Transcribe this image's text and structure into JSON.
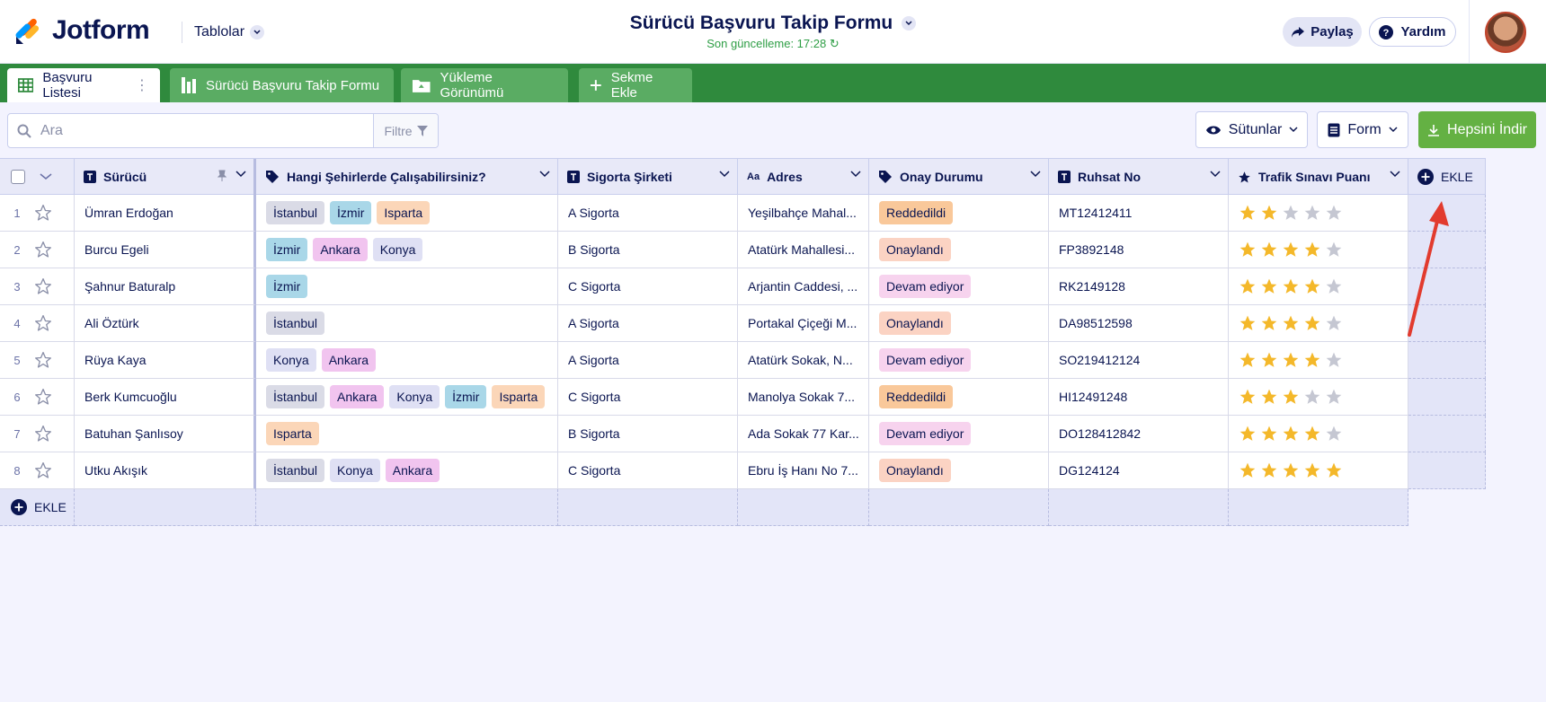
{
  "header": {
    "brand": "Jotform",
    "tables_label": "Tablolar",
    "form_title": "Sürücü Başvuru Takip Formu",
    "last_updated": "Son güncelleme: 17:28",
    "share_label": "Paylaş",
    "help_label": "Yardım"
  },
  "tabs": [
    {
      "label": "Başvuru Listesi",
      "icon": "grid-icon",
      "active": true
    },
    {
      "label": "Sürücü Başvuru Takip Formu",
      "icon": "report-icon",
      "active": false
    },
    {
      "label": "Yükleme Görünümü",
      "icon": "folder-icon",
      "active": false
    },
    {
      "label": "Sekme Ekle",
      "icon": "plus-icon",
      "active": false
    }
  ],
  "toolbar": {
    "search_placeholder": "Ara",
    "filter_label": "Filtre",
    "columns_label": "Sütunlar",
    "form_label": "Form",
    "download_label": "Hepsini İndir"
  },
  "columns": [
    {
      "label": "Sürücü",
      "icon": "text-icon"
    },
    {
      "label": "Hangi Şehirlerde Çalışabilirsiniz?",
      "icon": "tag-icon"
    },
    {
      "label": "Sigorta Şirketi",
      "icon": "text-icon"
    },
    {
      "label": "Adres",
      "icon": "font-icon"
    },
    {
      "label": "Onay Durumu",
      "icon": "tag-icon"
    },
    {
      "label": "Ruhsat No",
      "icon": "text-icon"
    },
    {
      "label": "Trafik Sınavı Puanı",
      "icon": "star-icon"
    }
  ],
  "add_column_label": "EKLE",
  "add_row_label": "EKLE",
  "rows": [
    {
      "num": "1",
      "driver": "Ümran Erdoğan",
      "cities": [
        "İstanbul",
        "İzmir",
        "Isparta"
      ],
      "insurance": "A Sigorta",
      "address": "Yeşilbahçe Mahal...",
      "status": "Reddedildi",
      "license": "MT12412411",
      "rating": 2
    },
    {
      "num": "2",
      "driver": "Burcu Egeli",
      "cities": [
        "İzmir",
        "Ankara",
        "Konya"
      ],
      "insurance": "B Sigorta",
      "address": "Atatürk Mahallesi...",
      "status": "Onaylandı",
      "license": "FP3892148",
      "rating": 4
    },
    {
      "num": "3",
      "driver": "Şahnur Baturalp",
      "cities": [
        "İzmir"
      ],
      "insurance": "C Sigorta",
      "address": "Arjantin Caddesi, ...",
      "status": "Devam ediyor",
      "license": "RK2149128",
      "rating": 4
    },
    {
      "num": "4",
      "driver": "Ali Öztürk",
      "cities": [
        "İstanbul"
      ],
      "insurance": "A Sigorta",
      "address": "Portakal Çiçeği M...",
      "status": "Onaylandı",
      "license": "DA98512598",
      "rating": 4
    },
    {
      "num": "5",
      "driver": "Rüya Kaya",
      "cities": [
        "Konya",
        "Ankara"
      ],
      "insurance": "A Sigorta",
      "address": "Atatürk Sokak, N...",
      "status": "Devam ediyor",
      "license": "SO219412124",
      "rating": 4
    },
    {
      "num": "6",
      "driver": "Berk Kumcuoğlu",
      "cities": [
        "İstanbul",
        "Ankara",
        "Konya",
        "İzmir",
        "Isparta"
      ],
      "insurance": "C Sigorta",
      "address": "Manolya Sokak 7...",
      "status": "Reddedildi",
      "license": "HI12491248",
      "rating": 3
    },
    {
      "num": "7",
      "driver": "Batuhan Şanlısoy",
      "cities": [
        "Isparta"
      ],
      "insurance": "B Sigorta",
      "address": "Ada Sokak 77 Kar...",
      "status": "Devam ediyor",
      "license": "DO128412842",
      "rating": 4
    },
    {
      "num": "8",
      "driver": "Utku Akışık",
      "cities": [
        "İstanbul",
        "Konya",
        "Ankara"
      ],
      "insurance": "C Sigorta",
      "address": "Ebru İş Hanı No 7...",
      "status": "Onaylandı",
      "license": "DG124124",
      "rating": 5
    }
  ],
  "colors": {
    "brand_navy": "#0a1551",
    "tab_green": "#2f8a3d",
    "download_green": "#64b143",
    "star_gold": "#f4b82a",
    "arrow_red": "#e23b2e"
  }
}
